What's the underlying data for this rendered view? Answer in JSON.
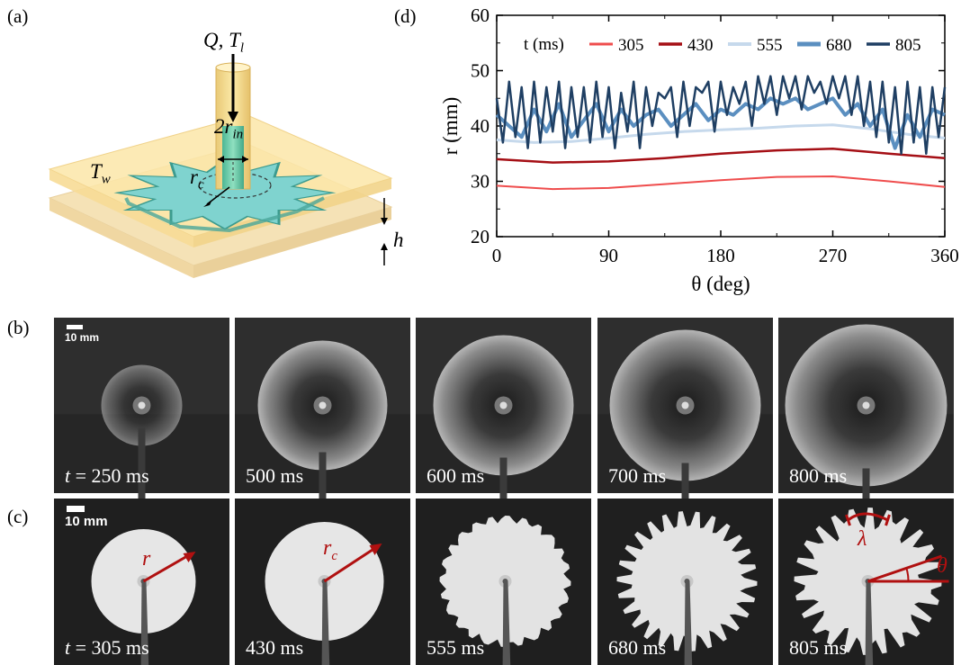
{
  "panel_labels": {
    "a": "(a)",
    "b": "(b)",
    "c": "(c)",
    "d": "(d)"
  },
  "schematic": {
    "flow_label": "Q, T",
    "flow_sub": "l",
    "diameter_label": "2r",
    "diameter_sub": "in",
    "wall_label": "T",
    "wall_sub": "w",
    "radius_label": "r",
    "radius_sub": "c",
    "gap_label": "h"
  },
  "row_b": {
    "scale_bar": "10 mm",
    "captions": [
      "t = 250 ms",
      "500 ms",
      "600 ms",
      "700 ms",
      "800 ms"
    ],
    "caption_prefix": "t",
    "caption_first_value": " = 250 ms"
  },
  "row_c": {
    "scale_bar": "10 mm",
    "captions": [
      "t = 305 ms",
      "430 ms",
      "555 ms",
      "680 ms",
      "805 ms"
    ],
    "caption_prefix": "t",
    "caption_first_value": " = 305 ms",
    "annotation_r": "r",
    "annotation_rc": "r",
    "annotation_rc_sub": "c",
    "annotation_lambda": "λ",
    "annotation_theta": "θ"
  },
  "colors": {
    "s305": "#ef4d4d",
    "s430": "#a50f15",
    "s555": "#c6d9ec",
    "s680": "#5b8fc0",
    "s805": "#1f3f63",
    "annotation": "#b01010",
    "liquid": "#80d4cf"
  },
  "chart_data": {
    "type": "line",
    "xlabel": "θ (deg)",
    "ylabel": "r (mm)",
    "xlim": [
      0,
      360
    ],
    "ylim": [
      20,
      60
    ],
    "xticks": [
      0,
      90,
      180,
      270,
      360
    ],
    "yticks": [
      20,
      30,
      40,
      50,
      60
    ],
    "grid": false,
    "legend_title": "t (ms)",
    "legend_position": "top",
    "series": [
      {
        "name": "305",
        "color": "#ef4d4d",
        "width": 2,
        "x": [
          0,
          45,
          90,
          135,
          180,
          225,
          270,
          315,
          360
        ],
        "y": [
          29.2,
          28.6,
          28.8,
          29.5,
          30.2,
          30.8,
          30.9,
          30.0,
          29.0
        ]
      },
      {
        "name": "430",
        "color": "#a50f15",
        "width": 2.5,
        "x": [
          0,
          45,
          90,
          135,
          180,
          225,
          270,
          315,
          360
        ],
        "y": [
          34.0,
          33.4,
          33.6,
          34.2,
          35.0,
          35.6,
          35.9,
          35.0,
          34.2
        ]
      },
      {
        "name": "555",
        "color": "#c6d9ec",
        "width": 3,
        "x": [
          0,
          30,
          60,
          90,
          120,
          150,
          180,
          210,
          240,
          270,
          300,
          330,
          360
        ],
        "y": [
          37.5,
          37.0,
          37.2,
          37.8,
          38.5,
          39.0,
          39.3,
          39.6,
          40.0,
          40.2,
          39.5,
          38.5,
          37.8
        ]
      },
      {
        "name": "680",
        "color": "#5b8fc0",
        "width": 4,
        "x": [
          0,
          10,
          20,
          30,
          40,
          50,
          60,
          70,
          80,
          90,
          100,
          110,
          120,
          130,
          140,
          150,
          160,
          170,
          180,
          190,
          200,
          210,
          220,
          230,
          240,
          250,
          260,
          270,
          280,
          290,
          300,
          310,
          320,
          330,
          340,
          350,
          360
        ],
        "y": [
          42,
          40,
          38,
          43,
          39,
          44,
          38,
          41,
          44,
          39,
          43,
          40,
          42,
          43,
          40,
          42,
          44,
          41,
          43,
          42,
          44,
          43,
          45,
          44,
          45,
          43,
          44,
          45,
          42,
          44,
          40,
          43,
          36,
          42,
          38,
          43,
          42
        ]
      },
      {
        "name": "805",
        "color": "#1f3f63",
        "width": 2.5,
        "x": [
          0,
          5,
          10,
          15,
          20,
          25,
          30,
          35,
          40,
          45,
          50,
          55,
          60,
          65,
          70,
          75,
          80,
          85,
          90,
          95,
          100,
          105,
          110,
          115,
          120,
          125,
          130,
          135,
          140,
          145,
          150,
          155,
          160,
          165,
          170,
          175,
          180,
          185,
          190,
          195,
          200,
          205,
          210,
          215,
          220,
          225,
          230,
          235,
          240,
          245,
          250,
          255,
          260,
          265,
          270,
          275,
          280,
          285,
          290,
          295,
          300,
          305,
          310,
          315,
          320,
          325,
          330,
          335,
          340,
          345,
          350,
          355,
          360
        ],
        "y": [
          45,
          37,
          48,
          38,
          47,
          36,
          48,
          37,
          47,
          39,
          48,
          36,
          47,
          38,
          47,
          37,
          48,
          38,
          47,
          36,
          46,
          39,
          48,
          36,
          47,
          40,
          46,
          45,
          47,
          38,
          48,
          40,
          47,
          46,
          48,
          39,
          48,
          42,
          47,
          44,
          48,
          40,
          49,
          44,
          49,
          42,
          49,
          45,
          49,
          43,
          49,
          46,
          48,
          44,
          49,
          45,
          49,
          42,
          49,
          40,
          48,
          38,
          48,
          37,
          47,
          35,
          48,
          37,
          47,
          35,
          47,
          38,
          47
        ]
      }
    ]
  }
}
